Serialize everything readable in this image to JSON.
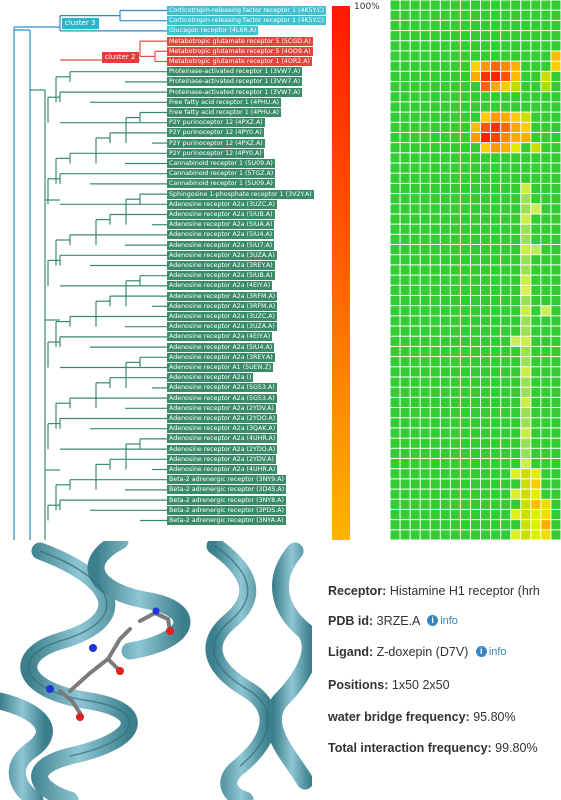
{
  "scale": {
    "max_label": "100%"
  },
  "clusters": [
    {
      "label": "cluster 3",
      "color": "#2bb7c7"
    },
    {
      "label": "cluster 2",
      "color": "#e43c3c"
    }
  ],
  "colors": {
    "cluster3": "#3ec3d0",
    "cluster2": "#e4463e",
    "default": "#3a8c68",
    "tree3": "#2a8cc8",
    "tree2": "#e05048",
    "tree": "#3a8c68",
    "heat_bg": "#33cc33"
  },
  "leaves": [
    {
      "label": "Corticotropin-releasing factor receptor 1 (4K5Y.C)",
      "group": "cluster3"
    },
    {
      "label": "Corticotropin-releasing factor receptor 1 (4K5Y.C)",
      "group": "cluster3"
    },
    {
      "label": "Glucagon receptor (4L6R.A)",
      "group": "cluster3"
    },
    {
      "label": "Metabotropic glutamate receptor 5 (5CGD.A)",
      "group": "cluster2"
    },
    {
      "label": "Metabotropic glutamate receptor 5 (4OO9.A)",
      "group": "cluster2"
    },
    {
      "label": "Metabotropic glutamate receptor 1 (4OR2.A)",
      "group": "cluster2"
    },
    {
      "label": "Proteinase-activated receptor 1 (3VW7.A)",
      "group": "default"
    },
    {
      "label": "Proteinase-activated receptor 1 (3VW7.A)",
      "group": "default"
    },
    {
      "label": "Proteinase-activated receptor 1 (3VW7.A)",
      "group": "default"
    },
    {
      "label": "Free fatty acid receptor 1 (4PHU.A)",
      "group": "default"
    },
    {
      "label": "Free fatty acid receptor 1 (4PHU.A)",
      "group": "default"
    },
    {
      "label": "P2Y purinoceptor 12 (4PXZ.A)",
      "group": "default"
    },
    {
      "label": "P2Y purinoceptor 12 (4PY0.A)",
      "group": "default"
    },
    {
      "label": "P2Y purinoceptor 12 (4PXZ.A)",
      "group": "default"
    },
    {
      "label": "P2Y purinoceptor 12 (4PY0.A)",
      "group": "default"
    },
    {
      "label": "Cannabinoid receptor 1 (5U09.A)",
      "group": "default"
    },
    {
      "label": "Cannabinoid receptor 1 (5TGZ.A)",
      "group": "default"
    },
    {
      "label": "Cannabinoid receptor 1 (5U09.A)",
      "group": "default"
    },
    {
      "label": "Sphingosine 1-phosphate receptor 1 (3V2Y.A)",
      "group": "default"
    },
    {
      "label": "Adenosine receptor A2a (3UZC.A)",
      "group": "default"
    },
    {
      "label": "Adenosine receptor A2a (5IUB.A)",
      "group": "default"
    },
    {
      "label": "Adenosine receptor A2a (5IUA.A)",
      "group": "default"
    },
    {
      "label": "Adenosine receptor A2a (5IU4.A)",
      "group": "default"
    },
    {
      "label": "Adenosine receptor A2a (5IU7.A)",
      "group": "default"
    },
    {
      "label": "Adenosine receptor A2a (3UZA.A)",
      "group": "default"
    },
    {
      "label": "Adenosine receptor A2a (3REY.A)",
      "group": "default"
    },
    {
      "label": "Adenosine receptor A2a (5IUB.A)",
      "group": "default"
    },
    {
      "label": "Adenosine receptor A2a (4EIY.A)",
      "group": "default"
    },
    {
      "label": "Adenosine receptor A2a (3RFM.A)",
      "group": "default"
    },
    {
      "label": "Adenosine receptor A2a (3RFM.A)",
      "group": "default"
    },
    {
      "label": "Adenosine receptor A2a (3UZC.A)",
      "group": "default"
    },
    {
      "label": "Adenosine receptor A2a (3UZA.A)",
      "group": "default"
    },
    {
      "label": "Adenosine receptor A2a (4EIY.A)",
      "group": "default"
    },
    {
      "label": "Adenosine receptor A2a (5IU4.A)",
      "group": "default"
    },
    {
      "label": "Adenosine receptor A2a (3REY.A)",
      "group": "default"
    },
    {
      "label": "Adenosine receptor A1 (5UEN.Z)",
      "group": "default"
    },
    {
      "label": "Adenosine receptor A2a ()",
      "group": "default"
    },
    {
      "label": "Adenosine receptor A2a (5G53.A)",
      "group": "default"
    },
    {
      "label": "Adenosine receptor A2a (5G53.A)",
      "group": "default"
    },
    {
      "label": "Adenosine receptor A2a (2YDV.A)",
      "group": "default"
    },
    {
      "label": "Adenosine receptor A2a (2YDO.A)",
      "group": "default"
    },
    {
      "label": "Adenosine receptor A2a (3QAK.A)",
      "group": "default"
    },
    {
      "label": "Adenosine receptor A2a (4UHR.A)",
      "group": "default"
    },
    {
      "label": "Adenosine receptor A2a (2YDO.A)",
      "group": "default"
    },
    {
      "label": "Adenosine receptor A2a (2YDV.A)",
      "group": "default"
    },
    {
      "label": "Adenosine receptor A2a (4UHR.A)",
      "group": "default"
    },
    {
      "label": "Beta-2 adrenergic receptor (3NY9.A)",
      "group": "default"
    },
    {
      "label": "Beta-2 adrenergic receptor (3D4S.A)",
      "group": "default"
    },
    {
      "label": "Beta-2 adrenergic receptor (3NY8.A)",
      "group": "default"
    },
    {
      "label": "Beta-2 adrenergic receptor (3PDS.A)",
      "group": "default"
    },
    {
      "label": "Beta-2 adrenergic receptor (3NYA.A)",
      "group": "default"
    }
  ],
  "info": {
    "receptor_label": "Receptor:",
    "receptor_value": "Histamine H1 receptor (hrh",
    "pdb_label": "PDB id:",
    "pdb_value": "3RZE.A",
    "pdb_link": "info",
    "ligand_label": "Ligand:",
    "ligand_value": "Z-doxepin (D7V)",
    "ligand_link": "info",
    "positions_label": "Positions:",
    "positions_value": "1x50 2x50",
    "water_label": "water bridge frequency:",
    "water_value": "95.80%",
    "total_label": "Total interaction frequency:",
    "total_value": "99.80%"
  }
}
